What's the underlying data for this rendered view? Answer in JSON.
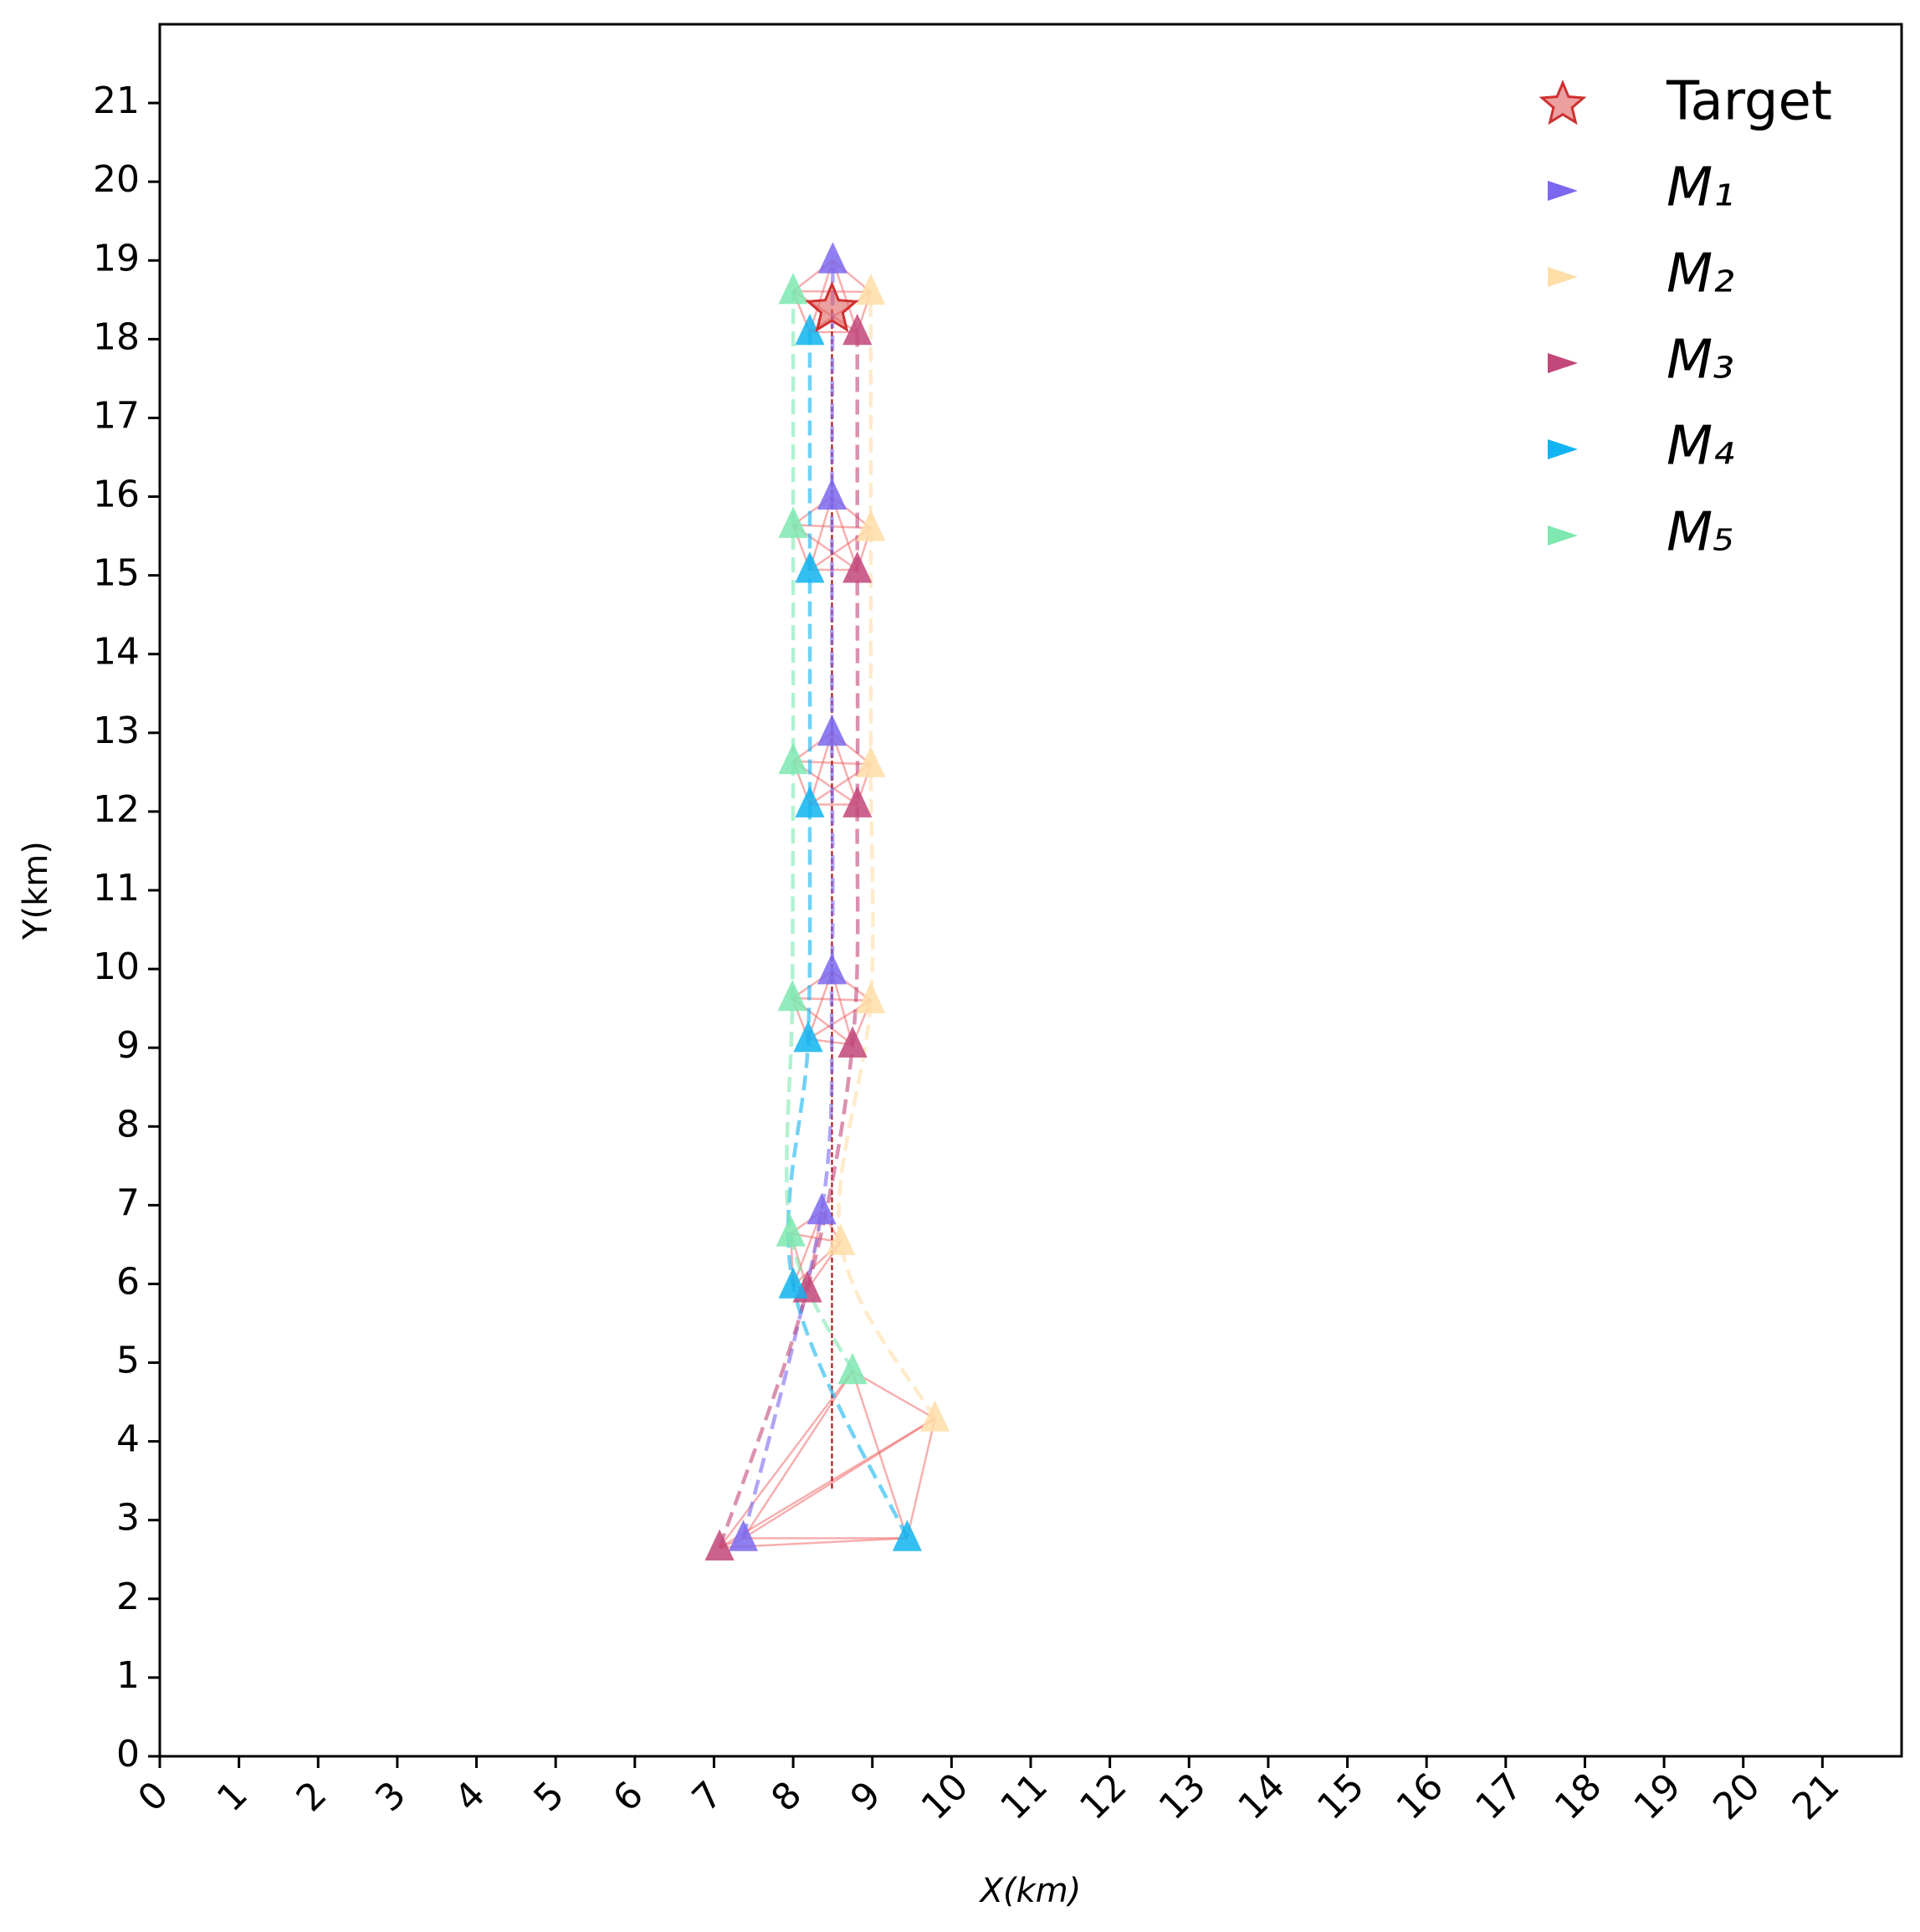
{
  "chart_data": {
    "type": "trajectory",
    "xlabel": "X(km)",
    "ylabel": "Y(km)",
    "xlim": [
      0,
      22
    ],
    "ylim": [
      0,
      22
    ],
    "xticks": [
      0,
      1,
      2,
      3,
      4,
      5,
      6,
      7,
      8,
      9,
      10,
      11,
      12,
      13,
      14,
      15,
      16,
      17,
      18,
      19,
      20,
      21
    ],
    "yticks": [
      0,
      1,
      2,
      3,
      4,
      5,
      6,
      7,
      8,
      9,
      10,
      11,
      12,
      13,
      14,
      15,
      16,
      17,
      18,
      19,
      20,
      21
    ],
    "legend": "upper right",
    "target": {
      "name": "Target",
      "color": "#e06060",
      "x": [
        8.49,
        8.49
      ],
      "y": [
        3.4,
        18.38
      ]
    },
    "series": [
      {
        "name": "M₁",
        "color": "#7b68ee",
        "x": [
          7.37,
          8.36,
          8.49,
          8.49,
          8.49,
          8.5
        ],
        "y": [
          2.77,
          6.92,
          9.97,
          13.0,
          16.0,
          19.0
        ]
      },
      {
        "name": "M₂",
        "color": "#ffdea8",
        "x": [
          9.79,
          8.6,
          8.98,
          8.98,
          8.98,
          8.98
        ],
        "y": [
          4.29,
          6.53,
          9.6,
          12.6,
          15.6,
          18.6
        ]
      },
      {
        "name": "M₃",
        "color": "#c2477a",
        "x": [
          7.07,
          8.18,
          8.75,
          8.81,
          8.81,
          8.81
        ],
        "y": [
          2.65,
          5.93,
          9.04,
          12.09,
          15.07,
          18.09
        ]
      },
      {
        "name": "M₄",
        "color": "#10b4f0",
        "x": [
          9.44,
          8.0,
          8.19,
          8.21,
          8.21,
          8.21
        ],
        "y": [
          2.77,
          5.98,
          9.11,
          12.09,
          15.07,
          18.09
        ]
      },
      {
        "name": "M₅",
        "color": "#7ee8b0",
        "x": [
          8.75,
          7.97,
          7.99,
          8.0,
          8.0,
          8.0
        ],
        "y": [
          4.89,
          6.64,
          9.63,
          12.64,
          15.64,
          18.61
        ]
      }
    ]
  }
}
